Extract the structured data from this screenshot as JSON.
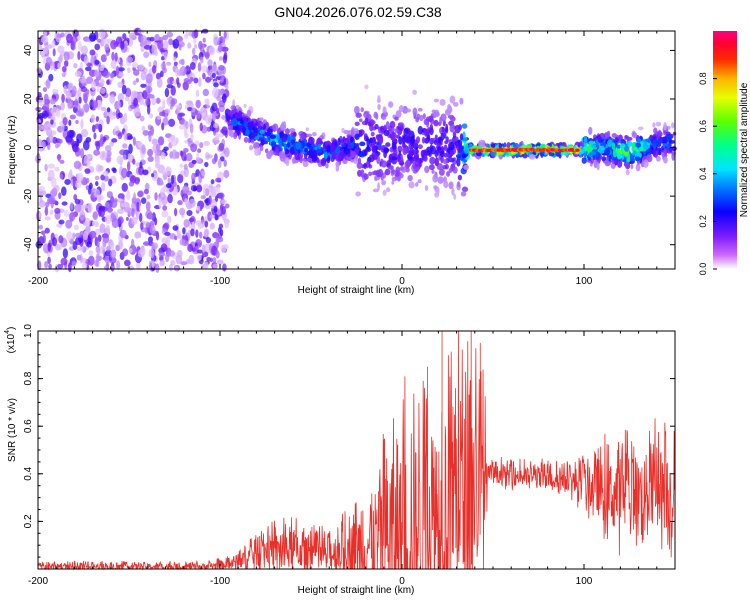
{
  "title": "GN04.2026.076.02.59.C38",
  "chart_data": [
    {
      "type": "heatmap",
      "title": "GN04.2026.076.02.59.C38",
      "xlabel": "Height of straight line (km)",
      "ylabel": "Frequency (Hz)",
      "xlim": [
        -200,
        150
      ],
      "ylim": [
        -50,
        48
      ],
      "xticks": [
        -200,
        -100,
        0,
        100
      ],
      "yticks": [
        -40,
        -20,
        0,
        20,
        40
      ],
      "xtick_labels": [
        "-200",
        "-100",
        "0",
        "100"
      ],
      "ytick_labels": [
        "-40",
        "-20",
        "0",
        "20",
        "40"
      ],
      "colorbar": {
        "label": "Normalized spectral amplitude",
        "range": [
          0,
          1
        ],
        "ticks": [
          0.0,
          0.2,
          0.4,
          0.6,
          0.8
        ],
        "tick_labels": [
          "0.0",
          "0.2",
          "0.4",
          "0.6",
          "0.8"
        ],
        "colormap": "rainbow (purple-blue-cyan-green-yellow-red-magenta)"
      },
      "ridge": [
        {
          "x": -95,
          "y": 12,
          "amp": 0.35
        },
        {
          "x": -85,
          "y": 8,
          "amp": 0.45
        },
        {
          "x": -70,
          "y": 3,
          "amp": 0.5
        },
        {
          "x": -55,
          "y": 0,
          "amp": 0.45
        },
        {
          "x": -40,
          "y": -2,
          "amp": 0.45
        },
        {
          "x": -25,
          "y": 1,
          "amp": 0.35
        },
        {
          "x": -10,
          "y": 0,
          "amp": 0.3
        },
        {
          "x": 10,
          "y": 2,
          "amp": 0.3
        },
        {
          "x": 30,
          "y": 0,
          "amp": 0.3
        },
        {
          "x": 40,
          "y": -1,
          "amp": 0.95
        },
        {
          "x": 60,
          "y": -1,
          "amp": 0.95
        },
        {
          "x": 80,
          "y": -1,
          "amp": 0.95
        },
        {
          "x": 95,
          "y": -1,
          "amp": 0.9
        },
        {
          "x": 110,
          "y": 0,
          "amp": 0.5
        },
        {
          "x": 125,
          "y": -2,
          "amp": 0.75
        },
        {
          "x": 140,
          "y": 2,
          "amp": 0.4
        }
      ]
    },
    {
      "type": "line",
      "xlabel": "Height of straight line (km)",
      "ylabel": "SNR (10 * v/v)",
      "scale_label": "(x10",
      "scale_exp": "4",
      "scale_close": ")",
      "xlim": [
        -200,
        150
      ],
      "ylim": [
        0,
        1.0
      ],
      "xticks": [
        -200,
        -100,
        0,
        100
      ],
      "yticks": [
        0.2,
        0.4,
        0.6,
        0.8,
        1.0
      ],
      "xtick_labels": [
        "-200",
        "-100",
        "0",
        "100"
      ],
      "ytick_labels": [
        "0.2",
        "0.4",
        "0.6",
        "0.8",
        "1.0"
      ],
      "color": "#e8302b",
      "series": [
        {
          "name": "SNR",
          "envelope": [
            {
              "x": -200,
              "base": 0.01,
              "amp": 0.02
            },
            {
              "x": -110,
              "base": 0.01,
              "amp": 0.02
            },
            {
              "x": -95,
              "base": 0.02,
              "amp": 0.03
            },
            {
              "x": -85,
              "base": 0.05,
              "amp": 0.06
            },
            {
              "x": -75,
              "base": 0.08,
              "amp": 0.1
            },
            {
              "x": -60,
              "base": 0.08,
              "amp": 0.12
            },
            {
              "x": -45,
              "base": 0.06,
              "amp": 0.1
            },
            {
              "x": -30,
              "base": 0.08,
              "amp": 0.15
            },
            {
              "x": -20,
              "base": 0.1,
              "amp": 0.3
            },
            {
              "x": -10,
              "base": 0.12,
              "amp": 0.45
            },
            {
              "x": 0,
              "base": 0.15,
              "amp": 0.55
            },
            {
              "x": 10,
              "base": 0.2,
              "amp": 0.6
            },
            {
              "x": 20,
              "base": 0.25,
              "amp": 0.65
            },
            {
              "x": 30,
              "base": 0.3,
              "amp": 0.7
            },
            {
              "x": 38,
              "base": 0.35,
              "amp": 0.62
            },
            {
              "x": 45,
              "base": 0.35,
              "amp": 0.55
            },
            {
              "x": 47,
              "base": 0.4,
              "amp": 0.06
            },
            {
              "x": 90,
              "base": 0.38,
              "amp": 0.07
            },
            {
              "x": 100,
              "base": 0.35,
              "amp": 0.12
            },
            {
              "x": 110,
              "base": 0.33,
              "amp": 0.2
            },
            {
              "x": 120,
              "base": 0.3,
              "amp": 0.25
            },
            {
              "x": 130,
              "base": 0.32,
              "amp": 0.25
            },
            {
              "x": 140,
              "base": 0.35,
              "amp": 0.25
            },
            {
              "x": 150,
              "base": 0.3,
              "amp": 0.3
            }
          ],
          "peaks": [
            {
              "x": 22,
              "y": 1.0
            },
            {
              "x": 38,
              "y": 1.0
            },
            {
              "x": 43,
              "y": 0.95
            },
            {
              "x": 14,
              "y": 0.85
            }
          ]
        }
      ]
    }
  ]
}
